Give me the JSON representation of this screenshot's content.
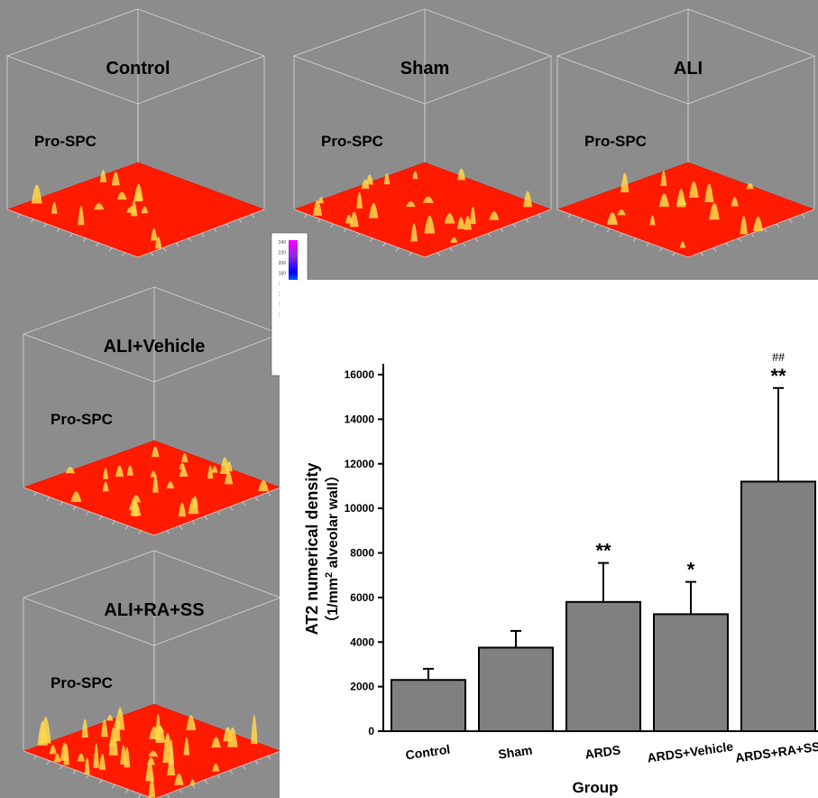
{
  "panels": [
    {
      "title": "Control",
      "label": "Pro-SPC"
    },
    {
      "title": "Sham",
      "label": "Pro-SPC"
    },
    {
      "title": "ALI",
      "label": "Pro-SPC"
    },
    {
      "title": "ALI+Vehicle",
      "label": "Pro-SPC"
    },
    {
      "title": "ALI+RA+SS",
      "label": "Pro-SPC"
    }
  ],
  "colorbar": {
    "ticks": [
      "240",
      "220",
      "200",
      "180",
      "160",
      "140",
      "120",
      "100",
      "80",
      "60",
      "40",
      "20",
      "0"
    ],
    "colors": [
      "#ff00ff",
      "#8a2be2",
      "#0000ff",
      "#00bfff",
      "#00ff7f",
      "#7fff00",
      "#ffff00",
      "#ff8c00",
      "#ff0000"
    ]
  },
  "surface_colors": {
    "base": "#ff1a00",
    "peak": "#ffd84a"
  },
  "chart_data": {
    "type": "bar",
    "categories": [
      "Control",
      "Sham",
      "ARDS",
      "ARDS+Vehicle",
      "ARDS+RA+SS"
    ],
    "values": [
      2300,
      3750,
      5800,
      5250,
      11200
    ],
    "errors": [
      500,
      750,
      1750,
      1450,
      4200
    ],
    "annotations": [
      "",
      "",
      "**",
      "*",
      "**"
    ],
    "annotations_top": [
      "",
      "",
      "",
      "",
      "##"
    ],
    "ylabel_line1": "AT2  numerical density",
    "ylabel_line2_pre": "（1/mm",
    "ylabel_line2_sup": "2",
    "ylabel_line2_post": " alveolar wall）",
    "xlabel": "Group",
    "ylim": [
      0,
      16000
    ],
    "yticks": [
      0,
      2000,
      4000,
      6000,
      8000,
      10000,
      12000,
      14000,
      16000
    ],
    "bar_color": "#808080"
  }
}
